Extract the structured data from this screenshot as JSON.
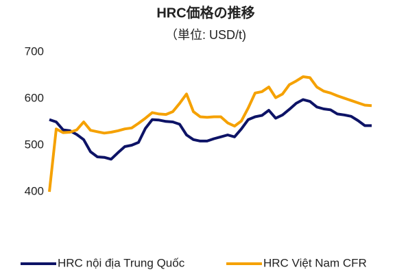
{
  "chart_data": {
    "type": "line",
    "title": "HRC価格の推移",
    "subtitle": "（単位: USD/t)",
    "categories": [
      null,
      null,
      null,
      null,
      null,
      null,
      null,
      null,
      null,
      null,
      null,
      null,
      null,
      null,
      null,
      null,
      null,
      null,
      null,
      null,
      null,
      null,
      null,
      null,
      null,
      null,
      null,
      null,
      null,
      null,
      null,
      null,
      null,
      null,
      null,
      null,
      null,
      null,
      null,
      null,
      null,
      null,
      null,
      null,
      null,
      null,
      null,
      null
    ],
    "series": [
      {
        "name": "HRC nội địa Trung Quốc",
        "color": "#0d1366",
        "values": [
          555,
          550,
          533,
          531,
          523,
          512,
          486,
          475,
          474,
          470,
          484,
          497,
          500,
          506,
          536,
          555,
          554,
          551,
          550,
          545,
          522,
          512,
          509,
          509,
          514,
          518,
          522,
          518,
          535,
          555,
          561,
          564,
          575,
          558,
          565,
          577,
          590,
          598,
          594,
          582,
          578,
          576,
          567,
          565,
          562,
          553,
          542,
          542
        ]
      },
      {
        "name": "HRC Việt Nam CFR",
        "color": "#f5a100",
        "values": [
          400,
          535,
          527,
          528,
          533,
          550,
          532,
          529,
          526,
          528,
          531,
          535,
          537,
          547,
          558,
          570,
          567,
          566,
          572,
          590,
          610,
          572,
          561,
          560,
          561,
          561,
          548,
          541,
          552,
          580,
          612,
          615,
          625,
          602,
          610,
          630,
          638,
          647,
          645,
          625,
          616,
          612,
          606,
          601,
          596,
          591,
          586,
          585
        ]
      }
    ],
    "ylim": [
      400,
      700
    ],
    "yticks": [
      400,
      500,
      600,
      700
    ],
    "grid": false,
    "legend": "bottom"
  }
}
